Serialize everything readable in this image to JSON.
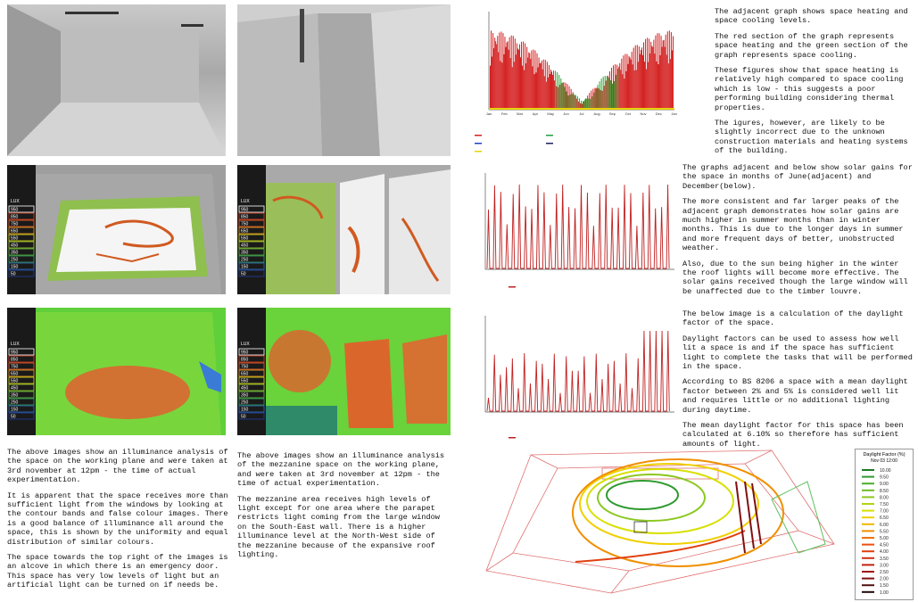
{
  "lux_legend": {
    "title": "LUX",
    "values": [
      "950",
      "850",
      "750",
      "650",
      "550",
      "450",
      "350",
      "250",
      "150",
      "50"
    ]
  },
  "left_text": [
    "The above images show an illuminance analysis of the space on the working plane and were taken at 3rd november at 12pm - the time of actual experimentation.",
    "It is apparent that the space receives more than sufficient light from the windows by looking at the contour bands and false colour images. There is a good balance of illuminance all around the space, this is shown by the uniformity and equal distribution of similar colours.",
    "The space towards the top right of the images is an alcove in which there is an emergency door. This space has very low levels of light but an artificial light can be turned on if needs be."
  ],
  "middle_text": [
    "The above images show an illuminance analysis of the mezzanine space on the working plane, and were taken at 3rd november at 12pm - the time of actual experimentation.",
    "The mezzanine area receives high levels of light except for one area where the parapet restricts light coming from the large window on the South-East wall. There is a higher illuminance level at the North-West side of the mezzanine because of the expansive roof lighting."
  ],
  "right_sections": [
    {
      "paragraphs": [
        "The adjacent graph shows space heating and space cooling levels.",
        "The red section of the graph represents space heating and the green section of the graph represents space cooling.",
        "These figures show that space heating is relatively high compared to space cooling which is low - this suggests a poor performing building considering thermal properties.",
        "The igures, however, are likely to be slightly incorrect due to the unknown construction materials and heating systems of the building."
      ]
    },
    {
      "paragraphs": [
        "The graphs adjacent and below show solar gains for the space in months of June(adjacent) and December(below).",
        "The more consistent and far larger peaks of the adjacent graph demonstrates how solar gains are much higher in summer months than in winter months. This is due to the longer days in summer and more frequent days of better, unobstructed weather.",
        "Also, due to the sun being higher in the winter the roof lights will become more effective. The solar gains received though the large window will be unaffected due to the timber louvre."
      ]
    },
    {
      "paragraphs": [
        "The below image is a calculation of the daylight factor of the space.",
        "Daylight factors can be used to assess how well lit a space is and if the space has sufficient light to complete the tasks that will be performed in the space.",
        "According to BS 8206 a space with a mean daylight factor between 2% and 5% is considered well lit and requires little or no additional lighting during daytime.",
        "The mean daylight factor for this space has been calculated at 6.10% so therefore has sufficient amounts of light."
      ]
    }
  ],
  "heating_chart": {
    "months": [
      "Jan",
      "Feb",
      "Mar",
      "Apr",
      "May",
      "Jun",
      "Jul",
      "Aug",
      "Sep",
      "Oct",
      "Nov",
      "Dec",
      "Jan"
    ]
  },
  "daylight_legend": {
    "title": "Daylight Factor (%)",
    "subtitle": "Nov 03 12:00",
    "values": [
      "10.00",
      "9.50",
      "9.00",
      "8.50",
      "8.00",
      "7.50",
      "7.00",
      "6.50",
      "6.00",
      "5.50",
      "5.00",
      "4.50",
      "4.00",
      "3.50",
      "3.00",
      "2.50",
      "2.00",
      "1.50",
      "1.00"
    ]
  }
}
